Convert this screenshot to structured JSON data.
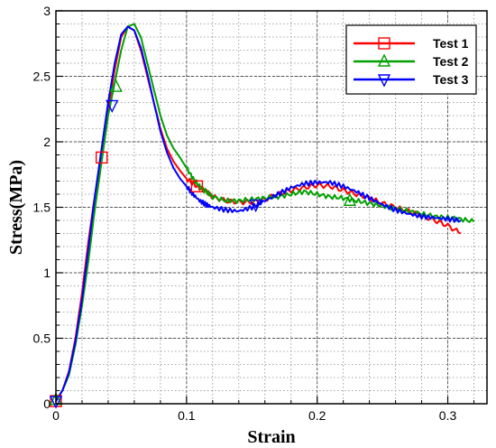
{
  "chart_data": {
    "type": "line",
    "title": "",
    "xlabel": "Strain",
    "ylabel": "Stress(MPa)",
    "xlim": [
      0,
      0.33
    ],
    "ylim": [
      0,
      3
    ],
    "xticks": [
      0,
      0.1,
      0.2,
      0.3
    ],
    "xtick_labels": [
      "0",
      "0.1",
      "0.2",
      "0.3"
    ],
    "yticks": [
      0,
      0.5,
      1,
      1.5,
      2,
      2.5,
      3
    ],
    "ytick_labels": [
      "0",
      "0.5",
      "1",
      "1.5",
      "2",
      "2.5",
      "3"
    ],
    "grid": true,
    "legend_position": "top-right",
    "series": [
      {
        "name": "Test 1",
        "color": "#ff0000",
        "marker": "square",
        "x": [
          0,
          0.005,
          0.01,
          0.015,
          0.02,
          0.025,
          0.03,
          0.035,
          0.04,
          0.045,
          0.05,
          0.055,
          0.06,
          0.065,
          0.07,
          0.075,
          0.08,
          0.085,
          0.09,
          0.095,
          0.1,
          0.105,
          0.11,
          0.115,
          0.12,
          0.13,
          0.14,
          0.15,
          0.16,
          0.17,
          0.18,
          0.19,
          0.2,
          0.21,
          0.22,
          0.23,
          0.24,
          0.25,
          0.26,
          0.27,
          0.28,
          0.29,
          0.3,
          0.31
        ],
        "y": [
          0.02,
          0.1,
          0.25,
          0.5,
          0.85,
          1.25,
          1.6,
          1.9,
          2.25,
          2.55,
          2.8,
          2.88,
          2.85,
          2.7,
          2.5,
          2.3,
          2.1,
          1.95,
          1.85,
          1.78,
          1.72,
          1.68,
          1.65,
          1.62,
          1.58,
          1.55,
          1.54,
          1.54,
          1.56,
          1.6,
          1.63,
          1.65,
          1.67,
          1.66,
          1.63,
          1.6,
          1.57,
          1.53,
          1.5,
          1.47,
          1.44,
          1.4,
          1.36,
          1.3
        ],
        "markers_x": [
          0,
          0.035,
          0.108
        ],
        "markers_y": [
          0.02,
          1.88,
          1.66
        ]
      },
      {
        "name": "Test 2",
        "color": "#00a000",
        "marker": "triangle-up",
        "x": [
          0,
          0.005,
          0.01,
          0.015,
          0.02,
          0.025,
          0.03,
          0.035,
          0.04,
          0.045,
          0.05,
          0.055,
          0.06,
          0.065,
          0.07,
          0.075,
          0.08,
          0.085,
          0.09,
          0.095,
          0.1,
          0.105,
          0.11,
          0.115,
          0.12,
          0.13,
          0.14,
          0.15,
          0.16,
          0.17,
          0.18,
          0.19,
          0.2,
          0.21,
          0.22,
          0.23,
          0.24,
          0.25,
          0.26,
          0.27,
          0.28,
          0.29,
          0.3,
          0.31,
          0.32
        ],
        "y": [
          0.03,
          0.1,
          0.22,
          0.45,
          0.75,
          1.1,
          1.5,
          1.85,
          2.2,
          2.45,
          2.7,
          2.88,
          2.9,
          2.8,
          2.6,
          2.4,
          2.2,
          2.05,
          1.95,
          1.88,
          1.8,
          1.72,
          1.66,
          1.62,
          1.58,
          1.55,
          1.55,
          1.56,
          1.57,
          1.58,
          1.6,
          1.62,
          1.6,
          1.58,
          1.57,
          1.55,
          1.53,
          1.51,
          1.49,
          1.47,
          1.45,
          1.43,
          1.42,
          1.41,
          1.39
        ],
        "markers_x": [
          0,
          0.046,
          0.225
        ],
        "markers_y": [
          0.03,
          2.42,
          1.55
        ]
      },
      {
        "name": "Test 3",
        "color": "#0000ff",
        "marker": "triangle-down",
        "x": [
          0,
          0.005,
          0.01,
          0.015,
          0.02,
          0.025,
          0.03,
          0.035,
          0.04,
          0.045,
          0.05,
          0.055,
          0.06,
          0.065,
          0.07,
          0.075,
          0.08,
          0.085,
          0.09,
          0.095,
          0.1,
          0.105,
          0.11,
          0.115,
          0.12,
          0.13,
          0.14,
          0.15,
          0.16,
          0.17,
          0.18,
          0.19,
          0.2,
          0.21,
          0.22,
          0.23,
          0.24,
          0.25,
          0.26,
          0.27,
          0.28,
          0.29,
          0.3,
          0.31
        ],
        "y": [
          0.02,
          0.1,
          0.24,
          0.48,
          0.8,
          1.2,
          1.6,
          1.95,
          2.3,
          2.6,
          2.82,
          2.88,
          2.85,
          2.72,
          2.52,
          2.3,
          2.08,
          1.92,
          1.8,
          1.72,
          1.66,
          1.6,
          1.55,
          1.52,
          1.5,
          1.48,
          1.47,
          1.5,
          1.55,
          1.6,
          1.65,
          1.68,
          1.69,
          1.69,
          1.66,
          1.62,
          1.57,
          1.52,
          1.48,
          1.45,
          1.43,
          1.42,
          1.41,
          1.4
        ],
        "markers_x": [
          0,
          0.043,
          0.153
        ],
        "markers_y": [
          0.02,
          2.28,
          1.52
        ]
      }
    ]
  }
}
